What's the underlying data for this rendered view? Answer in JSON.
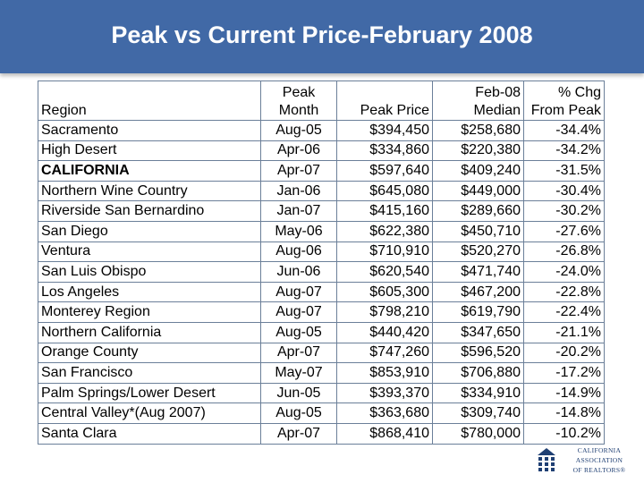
{
  "title": "Peak vs Current Price-February 2008",
  "table": {
    "headers": {
      "region": [
        "Region"
      ],
      "peak_month": [
        "Peak",
        "Month"
      ],
      "peak_price": [
        "Peak Price"
      ],
      "feb08_median": [
        "Feb-08",
        "Median"
      ],
      "pct_chg": [
        "% Chg",
        "From Peak"
      ]
    },
    "rows": [
      {
        "region": "Sacramento",
        "peak_month": "Aug-05",
        "peak_price": "$394,450",
        "feb08_median": "$258,680",
        "pct_chg": "-34.4%",
        "bold": false
      },
      {
        "region": "High Desert",
        "peak_month": "Apr-06",
        "peak_price": "$334,860",
        "feb08_median": "$220,380",
        "pct_chg": "-34.2%",
        "bold": false
      },
      {
        "region": "CALIFORNIA",
        "peak_month": "Apr-07",
        "peak_price": "$597,640",
        "feb08_median": "$409,240",
        "pct_chg": "-31.5%",
        "bold": true
      },
      {
        "region": "Northern Wine Country",
        "peak_month": "Jan-06",
        "peak_price": "$645,080",
        "feb08_median": "$449,000",
        "pct_chg": "-30.4%",
        "bold": false
      },
      {
        "region": "Riverside San Bernardino",
        "peak_month": "Jan-07",
        "peak_price": "$415,160",
        "feb08_median": "$289,660",
        "pct_chg": "-30.2%",
        "bold": false
      },
      {
        "region": "San Diego",
        "peak_month": "May-06",
        "peak_price": "$622,380",
        "feb08_median": "$450,710",
        "pct_chg": "-27.6%",
        "bold": false
      },
      {
        "region": "Ventura",
        "peak_month": "Aug-06",
        "peak_price": "$710,910",
        "feb08_median": "$520,270",
        "pct_chg": "-26.8%",
        "bold": false
      },
      {
        "region": "San Luis Obispo",
        "peak_month": "Jun-06",
        "peak_price": "$620,540",
        "feb08_median": "$471,740",
        "pct_chg": "-24.0%",
        "bold": false
      },
      {
        "region": "Los Angeles",
        "peak_month": "Aug-07",
        "peak_price": "$605,300",
        "feb08_median": "$467,200",
        "pct_chg": "-22.8%",
        "bold": false
      },
      {
        "region": "Monterey Region",
        "peak_month": "Aug-07",
        "peak_price": "$798,210",
        "feb08_median": "$619,790",
        "pct_chg": "-22.4%",
        "bold": false
      },
      {
        "region": "Northern California",
        "peak_month": "Aug-05",
        "peak_price": "$440,420",
        "feb08_median": "$347,650",
        "pct_chg": "-21.1%",
        "bold": false
      },
      {
        "region": "Orange County",
        "peak_month": "Apr-07",
        "peak_price": "$747,260",
        "feb08_median": "$596,520",
        "pct_chg": "-20.2%",
        "bold": false
      },
      {
        "region": "San Francisco",
        "peak_month": "May-07",
        "peak_price": "$853,910",
        "feb08_median": "$706,880",
        "pct_chg": "-17.2%",
        "bold": false
      },
      {
        "region": "Palm Springs/Lower Desert",
        "peak_month": "Jun-05",
        "peak_price": "$393,370",
        "feb08_median": "$334,910",
        "pct_chg": "-14.9%",
        "bold": false
      },
      {
        "region": "Central Valley*(Aug 2007)",
        "peak_month": "Aug-05",
        "peak_price": "$363,680",
        "feb08_median": "$309,740",
        "pct_chg": "-14.8%",
        "bold": false
      },
      {
        "region": "Santa Clara",
        "peak_month": "Apr-07",
        "peak_price": "$868,410",
        "feb08_median": "$780,000",
        "pct_chg": "-10.2%",
        "bold": false
      }
    ]
  },
  "logo": {
    "lines": [
      "CALIFORNIA",
      "ASSOCIATION",
      "OF REALTORS®"
    ],
    "icon": "house-grid-icon",
    "color": "#1f3f73"
  },
  "colors": {
    "title_bar": "#4169a6",
    "title_text": "#ffffff",
    "grid": "#6b7f99"
  }
}
